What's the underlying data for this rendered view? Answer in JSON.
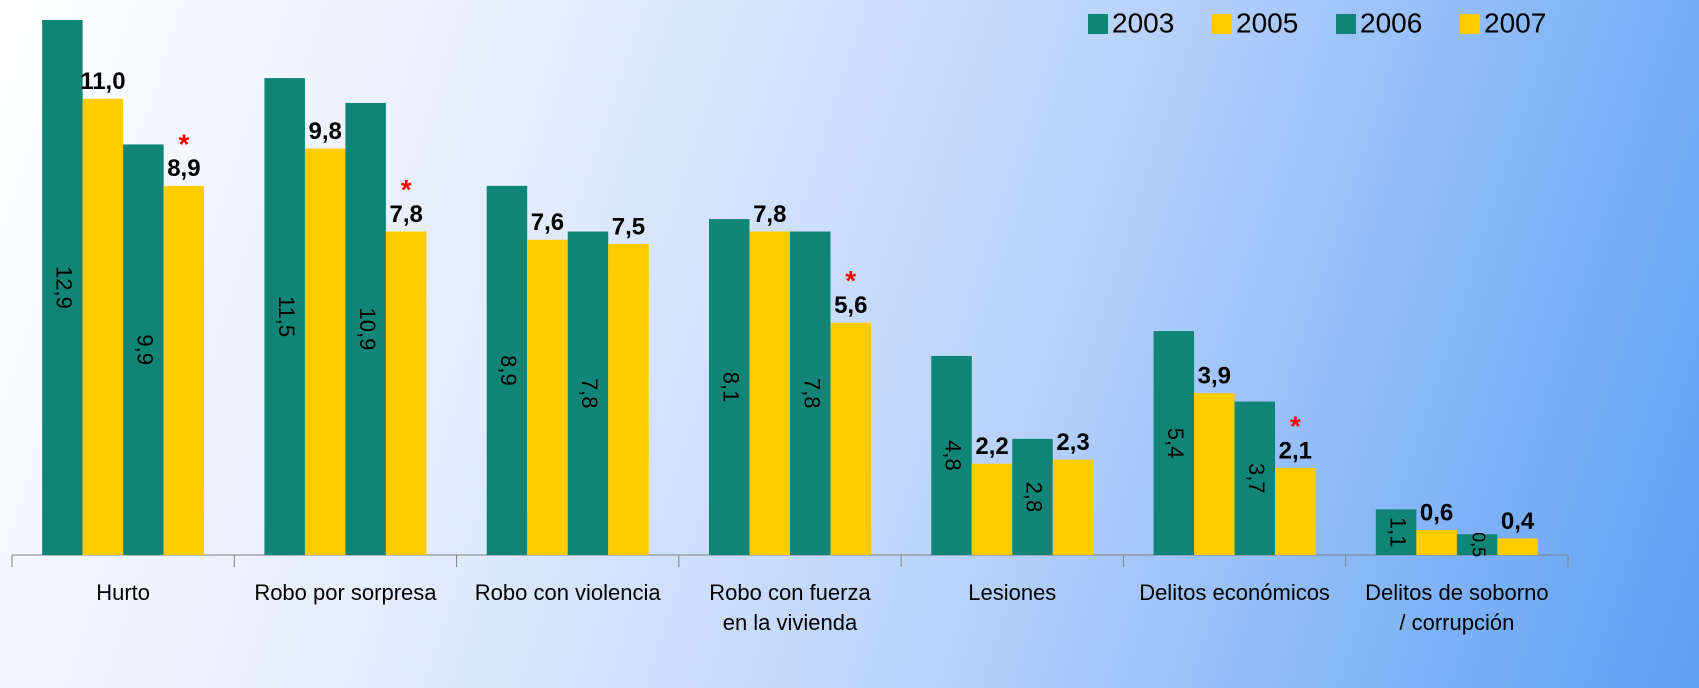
{
  "chart_data": {
    "type": "bar",
    "categories": [
      "Hurto",
      "Robo por sorpresa",
      "Robo con violencia",
      "Robo con fuerza\nen la vivienda",
      "Lesiones",
      "Delitos económicos",
      "Delitos de soborno\n/ corrupción"
    ],
    "series": [
      {
        "name": "2003",
        "color": "#0f8477",
        "label_position": "inside",
        "values": [
          12.9,
          11.5,
          8.9,
          8.1,
          4.8,
          5.4,
          1.1
        ],
        "value_labels": [
          "12,9",
          "11,5",
          "8,9",
          "8,1",
          "4,8",
          "5,4",
          "1,1"
        ]
      },
      {
        "name": "2005",
        "color": "#ffcc00",
        "label_position": "above",
        "values": [
          11.0,
          9.8,
          7.6,
          7.8,
          2.2,
          3.9,
          0.6
        ],
        "value_labels": [
          "11,0",
          "9,8",
          "7,6",
          "7,8",
          "2,2",
          "3,9",
          "0,6"
        ]
      },
      {
        "name": "2006",
        "color": "#0f8477",
        "label_position": "inside",
        "values": [
          9.9,
          10.9,
          7.8,
          7.8,
          2.8,
          3.7,
          0.5
        ],
        "value_labels": [
          "9,9",
          "10,9",
          "7,8",
          "7,8",
          "2,8",
          "3,7",
          "0,5"
        ]
      },
      {
        "name": "2007",
        "color": "#ffcc00",
        "label_position": "above",
        "values": [
          8.9,
          7.8,
          7.5,
          5.6,
          2.3,
          2.1,
          0.4
        ],
        "value_labels": [
          "8,9",
          "7,8",
          "7,5",
          "5,6",
          "2,3",
          "2,1",
          "0,4"
        ],
        "marks": [
          "*",
          "*",
          null,
          "*",
          null,
          "*",
          null
        ]
      }
    ],
    "legend": "top-right"
  }
}
